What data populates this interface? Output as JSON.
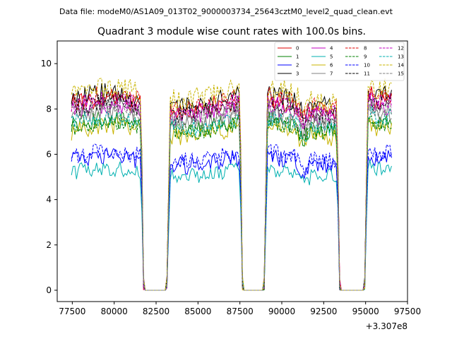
{
  "figure": {
    "suptitle": "Data file: modeM0/AS1A09_013T02_9000003734_25643cztM0_level2_quad_clean.evt"
  },
  "chart_data": {
    "type": "line",
    "title": "Quadrant 3 module wise count rates with 100.0s bins.",
    "xlabel": "",
    "ylabel": "",
    "x_offset_label": "+3.307e8",
    "xlim": [
      76600,
      97500
    ],
    "ylim": [
      -0.5,
      11.0
    ],
    "xticks": [
      77500,
      80000,
      82500,
      85000,
      87500,
      90000,
      92500,
      95000,
      97500
    ],
    "xtick_labels": [
      "77500",
      "80000",
      "82500",
      "85000",
      "87500",
      "90000",
      "92500",
      "95000",
      "97500"
    ],
    "yticks": [
      0,
      2,
      4,
      6,
      8,
      10
    ],
    "ytick_labels": [
      "0",
      "2",
      "4",
      "6",
      "8",
      "10"
    ],
    "grid": false,
    "legend_position": "top-right",
    "legend_columns": 4,
    "bin_size_s": 100,
    "x_start": 77450,
    "x_end": 96550,
    "on_intervals": [
      [
        77450,
        81650
      ],
      [
        83250,
        87550
      ],
      [
        89050,
        93350
      ],
      [
        95050,
        96550
      ]
    ],
    "series": [
      {
        "name": "0",
        "color": "#e00000",
        "dash": false,
        "level": 8.2,
        "noise": 0.45
      },
      {
        "name": "1",
        "color": "#008000",
        "dash": false,
        "level": 7.3,
        "noise": 0.4
      },
      {
        "name": "2",
        "color": "#0000ff",
        "dash": false,
        "level": 5.7,
        "noise": 0.4
      },
      {
        "name": "3",
        "color": "#000000",
        "dash": false,
        "level": 8.4,
        "noise": 0.45
      },
      {
        "name": "4",
        "color": "#c000c0",
        "dash": false,
        "level": 7.9,
        "noise": 0.4
      },
      {
        "name": "5",
        "color": "#00b0b0",
        "dash": false,
        "level": 5.2,
        "noise": 0.35
      },
      {
        "name": "6",
        "color": "#c8b400",
        "dash": false,
        "level": 7.0,
        "noise": 0.4
      },
      {
        "name": "7",
        "color": "#808080",
        "dash": false,
        "level": 7.6,
        "noise": 0.4
      },
      {
        "name": "8",
        "color": "#e00000",
        "dash": true,
        "level": 8.3,
        "noise": 0.45
      },
      {
        "name": "9",
        "color": "#008000",
        "dash": true,
        "level": 7.2,
        "noise": 0.4
      },
      {
        "name": "10",
        "color": "#0000ff",
        "dash": true,
        "level": 5.9,
        "noise": 0.4
      },
      {
        "name": "11",
        "color": "#000000",
        "dash": true,
        "level": 8.0,
        "noise": 0.4
      },
      {
        "name": "12",
        "color": "#c000c0",
        "dash": true,
        "level": 8.1,
        "noise": 0.4
      },
      {
        "name": "13",
        "color": "#00b0b0",
        "dash": true,
        "level": 7.4,
        "noise": 0.4
      },
      {
        "name": "14",
        "color": "#c8b400",
        "dash": true,
        "level": 8.7,
        "noise": 0.5
      },
      {
        "name": "15",
        "color": "#808080",
        "dash": true,
        "level": 7.8,
        "noise": 0.4
      }
    ]
  }
}
